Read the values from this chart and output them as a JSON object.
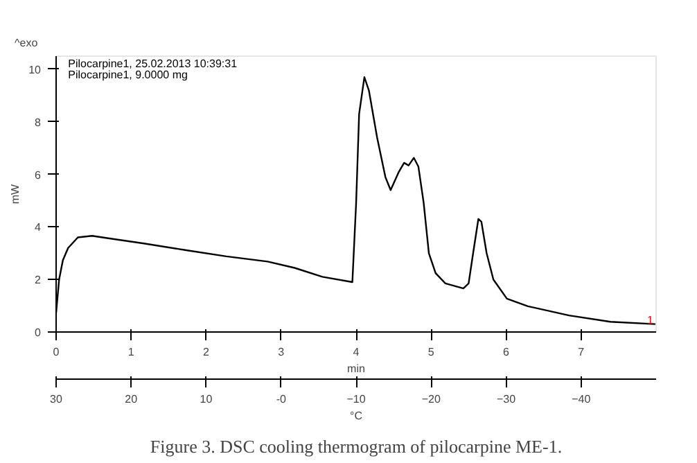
{
  "chart_data": {
    "type": "line",
    "title": "Figure 3. DSC cooling thermogram of pilocarpine ME-1.",
    "ylabel": "mW",
    "xlabel": "min",
    "x2label": "°C",
    "annotations": [
      "^exo",
      "Pilocarpine1, 25.02.2013 10:39:31",
      "Pilocarpine1, 9.0000 mg",
      "1"
    ],
    "xlim": [
      0,
      8
    ],
    "xticks": [
      0,
      1,
      2,
      3,
      4,
      5,
      6,
      7
    ],
    "x2lim": [
      30,
      -50
    ],
    "x2ticks": [
      30,
      20,
      10,
      {
        "value": 0,
        "label": "-0"
      },
      -10,
      -20,
      -30,
      -40
    ],
    "ylim": [
      0,
      10.5
    ],
    "yticks": [
      0,
      2,
      4,
      6,
      8,
      10
    ],
    "grid": false,
    "series": [
      {
        "color": "#000000",
        "x": [
          0,
          0.04,
          0.09,
          0.16,
          0.29,
          0.48,
          0.71,
          1.17,
          1.72,
          2.27,
          2.82,
          3.18,
          3.55,
          3.95,
          4.0,
          4.04,
          4.11,
          4.17,
          4.28,
          4.39,
          4.46,
          4.57,
          4.64,
          4.7,
          4.77,
          4.83,
          4.9,
          4.97,
          5.06,
          5.19,
          5.43,
          5.5,
          5.56,
          5.63,
          5.67,
          5.74,
          5.83,
          6.01,
          6.29,
          6.84,
          7.39,
          7.99
        ],
        "values": [
          0.73,
          2.0,
          2.73,
          3.2,
          3.6,
          3.66,
          3.56,
          3.37,
          3.12,
          2.88,
          2.68,
          2.44,
          2.1,
          1.9,
          4.9,
          8.3,
          9.7,
          9.2,
          7.4,
          5.9,
          5.4,
          6.1,
          6.44,
          6.34,
          6.63,
          6.3,
          4.93,
          3.0,
          2.24,
          1.85,
          1.66,
          1.85,
          3.0,
          4.3,
          4.2,
          3.0,
          2.0,
          1.27,
          0.98,
          0.63,
          0.39,
          0.3
        ]
      }
    ]
  }
}
